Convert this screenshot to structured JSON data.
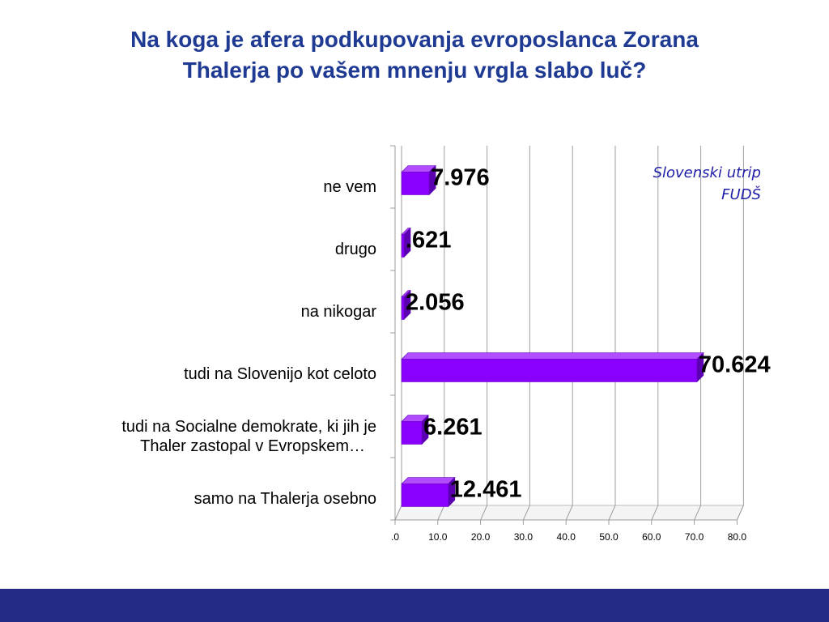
{
  "title_lines": [
    "Na koga je afera podkupovanja evroposlanca Zorana",
    "Thalerja po vašem mnenju vrgla slabo luč?"
  ],
  "source_lines": [
    "Slovenski utrip",
    "FUDŠ"
  ],
  "colors": {
    "title": "#1f3a93",
    "bar_front": "#8a00ff",
    "bar_top": "#b24dff",
    "bar_side": "#5a00b0",
    "source": "#1f1fa8",
    "footer": "#232a86"
  },
  "chart_data": {
    "type": "bar",
    "orientation": "horizontal",
    "style": "3d",
    "categories": [
      "ne vem",
      "drugo",
      "na nikogar",
      "tudi na Slovenijo kot celoto",
      "tudi na Socialne demokrate, ki jih je Thaler zastopal v Evropskem…",
      "samo na Thalerja osebno"
    ],
    "category_lines": [
      [
        "ne vem"
      ],
      [
        "drugo"
      ],
      [
        "na nikogar"
      ],
      [
        "tudi na Slovenijo kot celoto"
      ],
      [
        "tudi na Socialne demokrate, ki jih je",
        "Thaler zastopal v Evropskem…"
      ],
      [
        "samo na Thalerja osebno"
      ]
    ],
    "values": [
      7.976,
      0.621,
      2.056,
      70.624,
      6.261,
      12.461
    ],
    "value_labels": [
      "7.976",
      ".621",
      "2.056",
      "70.624",
      "6.261",
      "12.461"
    ],
    "xlim": [
      0,
      80
    ],
    "xticks": [
      ".0",
      "10.0",
      "20.0",
      "30.0",
      "40.0",
      "50.0",
      "60.0",
      "70.0",
      "80.0"
    ],
    "grid": true,
    "legend": "none"
  }
}
